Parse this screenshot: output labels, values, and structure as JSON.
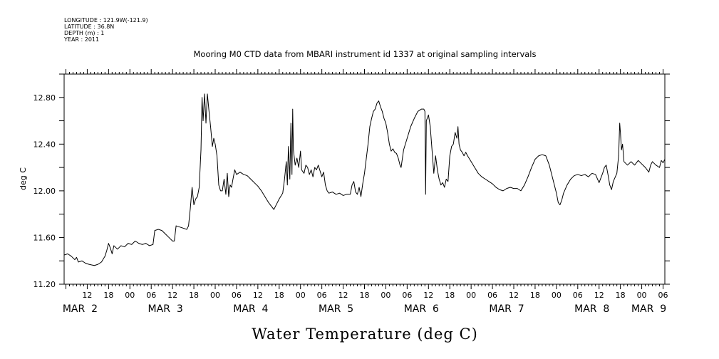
{
  "header": {
    "meta_lines": [
      "LONGITUDE : 121.9W(-121.9)",
      "LATITUDE : 36.8N",
      "DEPTH (m) : 1",
      "YEAR : 2011"
    ]
  },
  "chart_data": {
    "type": "line",
    "title": "Mooring M0 CTD data from MBARI instrument id 1337 at original sampling intervals",
    "xlabel": "Water Temperature (deg C)",
    "ylabel": "deg C",
    "ylim": [
      11.2,
      13.0
    ],
    "yticks": [
      11.2,
      11.6,
      12.0,
      12.4,
      12.8
    ],
    "ytick_labels": [
      "11.20",
      "11.60",
      "12.00",
      "12.40",
      "12.80"
    ],
    "xlim_hours_from_mar2_00": [
      -18.5,
      150.5
    ],
    "hour_labels": [
      {
        "h": -12,
        "label": "12"
      },
      {
        "h": -6,
        "label": "18"
      },
      {
        "h": 0,
        "label": "00"
      },
      {
        "h": 6,
        "label": "06"
      },
      {
        "h": 12,
        "label": "12"
      },
      {
        "h": 18,
        "label": "18"
      },
      {
        "h": 24,
        "label": "00"
      },
      {
        "h": 30,
        "label": "06"
      },
      {
        "h": 36,
        "label": "12"
      },
      {
        "h": 42,
        "label": "18"
      },
      {
        "h": 48,
        "label": "00"
      },
      {
        "h": 54,
        "label": "06"
      },
      {
        "h": 60,
        "label": "12"
      },
      {
        "h": 66,
        "label": "18"
      },
      {
        "h": 72,
        "label": "00"
      },
      {
        "h": 78,
        "label": "06"
      },
      {
        "h": 84,
        "label": "12"
      },
      {
        "h": 90,
        "label": "18"
      },
      {
        "h": 96,
        "label": "00"
      },
      {
        "h": 102,
        "label": "06"
      },
      {
        "h": 108,
        "label": "12"
      },
      {
        "h": 114,
        "label": "18"
      },
      {
        "h": 120,
        "label": "00"
      },
      {
        "h": 126,
        "label": "06"
      },
      {
        "h": 132,
        "label": "12"
      },
      {
        "h": 138,
        "label": "18"
      },
      {
        "h": 144,
        "label": "00"
      },
      {
        "h": 150,
        "label": "06"
      }
    ],
    "day_labels": [
      {
        "h": -14,
        "label": "MAR  2"
      },
      {
        "h": 10,
        "label": "MAR  3"
      },
      {
        "h": 34,
        "label": "MAR  4"
      },
      {
        "h": 58,
        "label": "MAR  5"
      },
      {
        "h": 82,
        "label": "MAR  6"
      },
      {
        "h": 106,
        "label": "MAR  7"
      },
      {
        "h": 130,
        "label": "MAR  8"
      },
      {
        "h": 146,
        "label": "MAR  9"
      }
    ],
    "series": [
      {
        "color": "#000000",
        "points": [
          [
            -18.5,
            11.45
          ],
          [
            -17.5,
            11.46
          ],
          [
            -16.5,
            11.44
          ],
          [
            -15.5,
            11.41
          ],
          [
            -15.0,
            11.43
          ],
          [
            -14.5,
            11.39
          ],
          [
            -13.5,
            11.4
          ],
          [
            -12.5,
            11.38
          ],
          [
            -11.5,
            11.37
          ],
          [
            -10.0,
            11.36
          ],
          [
            -9.0,
            11.37
          ],
          [
            -8.0,
            11.39
          ],
          [
            -7.0,
            11.44
          ],
          [
            -6.5,
            11.49
          ],
          [
            -6.0,
            11.55
          ],
          [
            -5.5,
            11.51
          ],
          [
            -5.0,
            11.46
          ],
          [
            -4.5,
            11.53
          ],
          [
            -3.5,
            11.5
          ],
          [
            -2.5,
            11.53
          ],
          [
            -1.5,
            11.52
          ],
          [
            -0.5,
            11.55
          ],
          [
            0.5,
            11.54
          ],
          [
            1.5,
            11.57
          ],
          [
            2.5,
            11.55
          ],
          [
            3.5,
            11.54
          ],
          [
            4.5,
            11.55
          ],
          [
            5.5,
            11.53
          ],
          [
            6.5,
            11.54
          ],
          [
            7.0,
            11.66
          ],
          [
            8.0,
            11.67
          ],
          [
            9.0,
            11.66
          ],
          [
            10.0,
            11.63
          ],
          [
            11.0,
            11.6
          ],
          [
            12.0,
            11.57
          ],
          [
            12.5,
            11.57
          ],
          [
            13.0,
            11.7
          ],
          [
            14.0,
            11.69
          ],
          [
            15.0,
            11.68
          ],
          [
            16.0,
            11.67
          ],
          [
            16.5,
            11.7
          ],
          [
            17.0,
            11.85
          ],
          [
            17.5,
            12.03
          ],
          [
            18.0,
            11.88
          ],
          [
            18.5,
            11.93
          ],
          [
            19.0,
            11.95
          ],
          [
            19.5,
            12.03
          ],
          [
            20.0,
            12.35
          ],
          [
            20.3,
            12.8
          ],
          [
            20.6,
            12.6
          ],
          [
            21.0,
            12.83
          ],
          [
            21.4,
            12.58
          ],
          [
            21.8,
            12.83
          ],
          [
            22.2,
            12.7
          ],
          [
            22.7,
            12.55
          ],
          [
            23.2,
            12.38
          ],
          [
            23.6,
            12.45
          ],
          [
            24.0,
            12.4
          ],
          [
            24.5,
            12.3
          ],
          [
            25.0,
            12.05
          ],
          [
            25.5,
            12.0
          ],
          [
            26.0,
            12.0
          ],
          [
            26.5,
            12.1
          ],
          [
            27.0,
            11.97
          ],
          [
            27.4,
            12.15
          ],
          [
            27.8,
            11.95
          ],
          [
            28.2,
            12.05
          ],
          [
            28.6,
            12.03
          ],
          [
            29.0,
            12.1
          ],
          [
            29.5,
            12.18
          ],
          [
            30.0,
            12.14
          ],
          [
            31.0,
            12.16
          ],
          [
            32.0,
            12.14
          ],
          [
            33.0,
            12.13
          ],
          [
            34.0,
            12.1
          ],
          [
            35.0,
            12.07
          ],
          [
            36.0,
            12.04
          ],
          [
            37.0,
            12.0
          ],
          [
            38.0,
            11.95
          ],
          [
            39.0,
            11.9
          ],
          [
            40.0,
            11.86
          ],
          [
            40.5,
            11.84
          ],
          [
            41.0,
            11.87
          ],
          [
            42.0,
            11.93
          ],
          [
            43.0,
            11.98
          ],
          [
            43.5,
            12.1
          ],
          [
            44.0,
            12.25
          ],
          [
            44.3,
            12.05
          ],
          [
            44.6,
            12.38
          ],
          [
            45.0,
            12.1
          ],
          [
            45.3,
            12.58
          ],
          [
            45.6,
            12.14
          ],
          [
            45.8,
            12.7
          ],
          [
            46.0,
            12.35
          ],
          [
            46.5,
            12.22
          ],
          [
            47.0,
            12.28
          ],
          [
            47.5,
            12.2
          ],
          [
            48.0,
            12.34
          ],
          [
            48.3,
            12.18
          ],
          [
            49.0,
            12.15
          ],
          [
            49.5,
            12.22
          ],
          [
            50.0,
            12.2
          ],
          [
            50.5,
            12.14
          ],
          [
            51.0,
            12.18
          ],
          [
            51.5,
            12.12
          ],
          [
            52.0,
            12.2
          ],
          [
            52.5,
            12.18
          ],
          [
            53.0,
            12.22
          ],
          [
            53.5,
            12.17
          ],
          [
            54.0,
            12.12
          ],
          [
            54.5,
            12.16
          ],
          [
            55.0,
            12.05
          ],
          [
            55.5,
            12.0
          ],
          [
            56.0,
            11.98
          ],
          [
            57.0,
            11.99
          ],
          [
            58.0,
            11.97
          ],
          [
            59.0,
            11.98
          ],
          [
            60.0,
            11.96
          ],
          [
            61.0,
            11.97
          ],
          [
            62.0,
            11.97
          ],
          [
            62.5,
            12.05
          ],
          [
            63.0,
            12.08
          ],
          [
            63.5,
            11.99
          ],
          [
            64.0,
            11.97
          ],
          [
            64.5,
            12.03
          ],
          [
            65.0,
            11.95
          ],
          [
            65.5,
            12.06
          ],
          [
            66.0,
            12.15
          ],
          [
            67.0,
            12.4
          ],
          [
            67.5,
            12.55
          ],
          [
            68.0,
            12.62
          ],
          [
            68.5,
            12.68
          ],
          [
            69.0,
            12.7
          ],
          [
            69.5,
            12.75
          ],
          [
            70.0,
            12.77
          ],
          [
            70.5,
            12.72
          ],
          [
            71.0,
            12.68
          ],
          [
            71.5,
            12.62
          ],
          [
            72.0,
            12.58
          ],
          [
            72.5,
            12.5
          ],
          [
            73.0,
            12.4
          ],
          [
            73.5,
            12.34
          ],
          [
            74.0,
            12.36
          ],
          [
            74.5,
            12.33
          ],
          [
            75.0,
            12.32
          ],
          [
            75.5,
            12.28
          ],
          [
            76.0,
            12.22
          ],
          [
            76.3,
            12.2
          ],
          [
            77.0,
            12.35
          ],
          [
            78.0,
            12.45
          ],
          [
            79.0,
            12.55
          ],
          [
            80.0,
            12.62
          ],
          [
            81.0,
            12.68
          ],
          [
            82.0,
            12.7
          ],
          [
            82.7,
            12.7
          ],
          [
            83.0,
            12.68
          ],
          [
            83.2,
            11.97
          ],
          [
            83.4,
            12.6
          ],
          [
            84.0,
            12.65
          ],
          [
            84.5,
            12.55
          ],
          [
            85.0,
            12.35
          ],
          [
            85.5,
            12.15
          ],
          [
            86.0,
            12.3
          ],
          [
            86.5,
            12.18
          ],
          [
            87.0,
            12.1
          ],
          [
            87.5,
            12.05
          ],
          [
            88.0,
            12.07
          ],
          [
            88.5,
            12.03
          ],
          [
            89.0,
            12.1
          ],
          [
            89.5,
            12.08
          ],
          [
            90.0,
            12.3
          ],
          [
            90.5,
            12.38
          ],
          [
            91.0,
            12.4
          ],
          [
            91.5,
            12.5
          ],
          [
            92.0,
            12.45
          ],
          [
            92.3,
            12.55
          ],
          [
            92.6,
            12.4
          ],
          [
            93.0,
            12.35
          ],
          [
            93.5,
            12.33
          ],
          [
            94.0,
            12.3
          ],
          [
            94.5,
            12.33
          ],
          [
            95.0,
            12.3
          ],
          [
            96.0,
            12.25
          ],
          [
            97.0,
            12.2
          ],
          [
            98.0,
            12.15
          ],
          [
            99.0,
            12.12
          ],
          [
            100.0,
            12.1
          ],
          [
            101.0,
            12.08
          ],
          [
            102.0,
            12.06
          ],
          [
            103.0,
            12.03
          ],
          [
            104.0,
            12.01
          ],
          [
            105.0,
            12.0
          ],
          [
            106.0,
            12.02
          ],
          [
            107.0,
            12.03
          ],
          [
            108.0,
            12.02
          ],
          [
            109.0,
            12.02
          ],
          [
            110.0,
            12.0
          ],
          [
            111.0,
            12.05
          ],
          [
            112.0,
            12.12
          ],
          [
            113.0,
            12.2
          ],
          [
            114.0,
            12.27
          ],
          [
            115.0,
            12.3
          ],
          [
            116.0,
            12.31
          ],
          [
            117.0,
            12.3
          ],
          [
            118.0,
            12.22
          ],
          [
            119.0,
            12.1
          ],
          [
            120.0,
            11.98
          ],
          [
            120.5,
            11.9
          ],
          [
            121.0,
            11.88
          ],
          [
            121.5,
            11.92
          ],
          [
            122.0,
            11.98
          ],
          [
            123.0,
            12.05
          ],
          [
            124.0,
            12.1
          ],
          [
            125.0,
            12.13
          ],
          [
            126.0,
            12.14
          ],
          [
            127.0,
            12.13
          ],
          [
            128.0,
            12.14
          ],
          [
            129.0,
            12.12
          ],
          [
            130.0,
            12.15
          ],
          [
            131.0,
            12.14
          ],
          [
            132.0,
            12.07
          ],
          [
            133.0,
            12.15
          ],
          [
            133.5,
            12.2
          ],
          [
            134.0,
            12.22
          ],
          [
            134.5,
            12.14
          ],
          [
            135.0,
            12.05
          ],
          [
            135.5,
            12.01
          ],
          [
            136.0,
            12.08
          ],
          [
            137.0,
            12.15
          ],
          [
            137.5,
            12.3
          ],
          [
            137.8,
            12.58
          ],
          [
            138.0,
            12.5
          ],
          [
            138.3,
            12.35
          ],
          [
            138.6,
            12.4
          ],
          [
            139.0,
            12.25
          ],
          [
            140.0,
            12.22
          ],
          [
            141.0,
            12.25
          ],
          [
            142.0,
            12.22
          ],
          [
            143.0,
            12.26
          ],
          [
            144.0,
            12.23
          ],
          [
            145.0,
            12.2
          ],
          [
            146.0,
            12.16
          ],
          [
            146.5,
            12.22
          ],
          [
            147.0,
            12.25
          ],
          [
            148.0,
            12.22
          ],
          [
            149.0,
            12.2
          ],
          [
            149.5,
            12.26
          ],
          [
            150.0,
            12.24
          ],
          [
            150.5,
            12.27
          ]
        ]
      }
    ]
  }
}
